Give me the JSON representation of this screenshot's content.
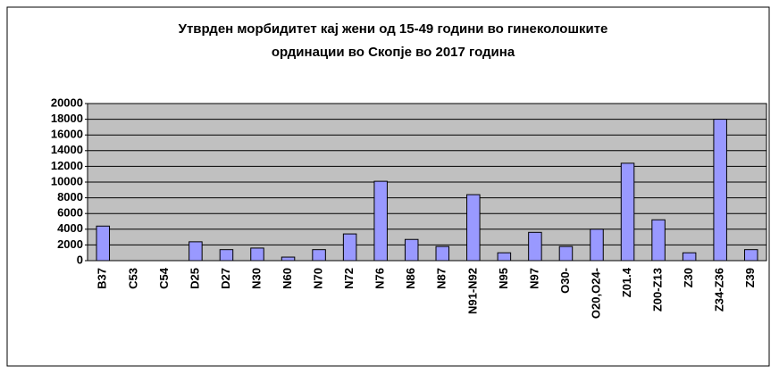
{
  "chart_data": {
    "type": "bar",
    "title": [
      "Утврден морбидитет кај жени од 15-49 години во гинеколошките",
      "ординации во Скопје во 2017 година"
    ],
    "categories": [
      "B37",
      "C53",
      "C54",
      "D25",
      "D27",
      "N30",
      "N60",
      "N70",
      "N72",
      "N76",
      "N86",
      "N87",
      "N91-N92",
      "N95",
      "N97",
      "O30-",
      "O20,O24-",
      "Z01.4",
      "Z00-Z13",
      "Z30",
      "Z34-Z36",
      "Z39"
    ],
    "values": [
      4400,
      0,
      0,
      2400,
      1400,
      1600,
      450,
      1400,
      3400,
      10100,
      2700,
      1800,
      8400,
      1000,
      3600,
      1800,
      4000,
      12400,
      5200,
      1000,
      18000,
      1400
    ],
    "color": "#9999ff",
    "plot_background": "#c0c0c0",
    "ylim": [
      0,
      20000
    ],
    "yticks": [
      0,
      2000,
      4000,
      6000,
      8000,
      10000,
      12000,
      14000,
      16000,
      18000,
      20000
    ],
    "grid": true
  }
}
